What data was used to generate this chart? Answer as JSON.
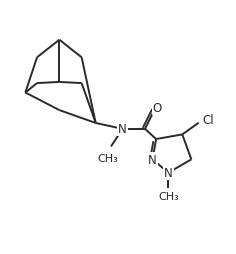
{
  "bg_color": "#ffffff",
  "line_color": "#2a2a2a",
  "line_width": 1.4,
  "font_size": 8.5,
  "figsize": [
    2.36,
    2.55
  ],
  "dpi": 100,
  "xlim": [
    0,
    10
  ],
  "ylim": [
    0,
    10.8
  ]
}
